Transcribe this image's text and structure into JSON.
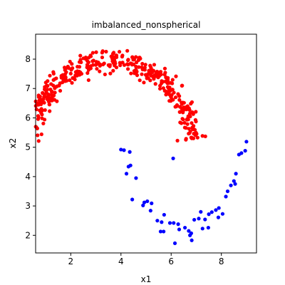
{
  "chart_data": {
    "type": "scatter",
    "title": "imbalanced_nonspherical",
    "xlabel": "x1",
    "ylabel": "x2",
    "xlim": [
      0.6,
      9.4
    ],
    "ylim": [
      1.4,
      8.85
    ],
    "xticks": [
      2,
      4,
      6,
      8
    ],
    "yticks": [
      2,
      3,
      4,
      5,
      6,
      7,
      8
    ],
    "grid": false,
    "legend": "none",
    "series": [
      {
        "color": "#ff0000",
        "count": 450,
        "shape": {
          "kind": "arc",
          "center": [
            3.6,
            4.6
          ],
          "radius": 3.35,
          "theta_start": 0.2,
          "theta_end": 3.0,
          "noise": 0.18
        }
      },
      {
        "color": "#0000ff",
        "points": [
          [
            4.0,
            4.92
          ],
          [
            4.12,
            4.9
          ],
          [
            4.35,
            4.84
          ],
          [
            4.3,
            4.34
          ],
          [
            4.38,
            4.38
          ],
          [
            4.22,
            4.1
          ],
          [
            4.6,
            3.95
          ],
          [
            6.08,
            4.62
          ],
          [
            4.45,
            3.22
          ],
          [
            4.88,
            3.02
          ],
          [
            4.93,
            3.12
          ],
          [
            5.05,
            3.16
          ],
          [
            5.22,
            3.09
          ],
          [
            5.18,
            2.84
          ],
          [
            5.45,
            2.5
          ],
          [
            5.62,
            2.45
          ],
          [
            5.58,
            2.13
          ],
          [
            5.7,
            2.13
          ],
          [
            5.72,
            2.7
          ],
          [
            5.95,
            2.42
          ],
          [
            6.1,
            2.42
          ],
          [
            6.15,
            1.73
          ],
          [
            6.28,
            2.38
          ],
          [
            6.32,
            2.2
          ],
          [
            6.55,
            2.26
          ],
          [
            6.7,
            2.15
          ],
          [
            6.8,
            2.07
          ],
          [
            6.75,
            2.0
          ],
          [
            6.82,
            1.83
          ],
          [
            6.92,
            2.53
          ],
          [
            7.1,
            2.57
          ],
          [
            7.18,
            2.8
          ],
          [
            7.25,
            2.23
          ],
          [
            7.35,
            2.54
          ],
          [
            7.48,
            2.26
          ],
          [
            7.5,
            2.72
          ],
          [
            7.62,
            2.79
          ],
          [
            7.78,
            2.86
          ],
          [
            7.88,
            2.61
          ],
          [
            7.9,
            2.93
          ],
          [
            8.05,
            2.73
          ],
          [
            8.18,
            3.32
          ],
          [
            8.25,
            3.5
          ],
          [
            8.38,
            3.7
          ],
          [
            8.5,
            3.85
          ],
          [
            8.58,
            4.1
          ],
          [
            8.7,
            4.75
          ],
          [
            8.8,
            4.8
          ],
          [
            8.95,
            4.88
          ],
          [
            9.0,
            5.19
          ],
          [
            8.55,
            3.75
          ]
        ]
      }
    ]
  }
}
